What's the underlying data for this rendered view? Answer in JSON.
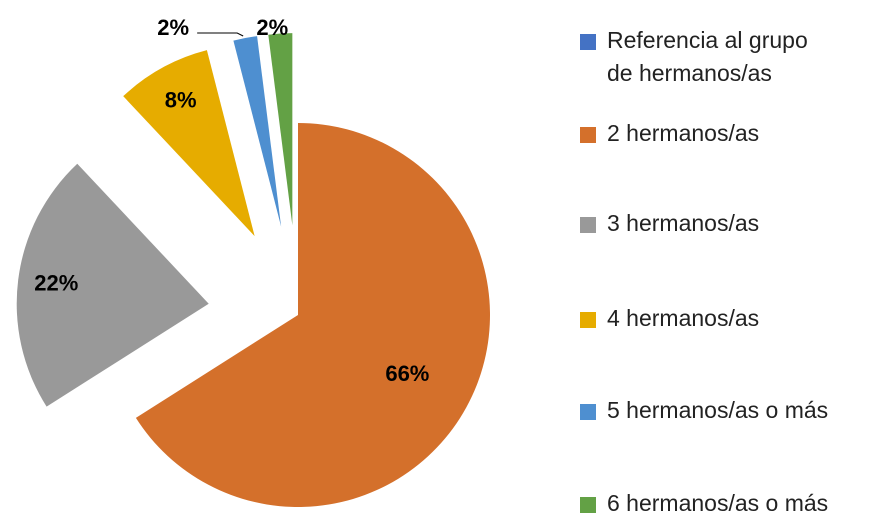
{
  "chart_data": {
    "type": "pie",
    "categories": [
      "Referencia al grupo de hermanos/as",
      "2 hermanos/as",
      "3 hermanos/as",
      "4 hermanos/as",
      "5 hermanos/as o más",
      "6 hermanos/as o más"
    ],
    "values": [
      0,
      66,
      22,
      8,
      2,
      2
    ],
    "value_labels": [
      null,
      "66%",
      "22%",
      "8%",
      "2%",
      "2%"
    ],
    "colors": [
      "#4472c4",
      "#d4702b",
      "#999999",
      "#e6ac00",
      "#4e8fd0",
      "#63a145"
    ],
    "legend": "right"
  }
}
